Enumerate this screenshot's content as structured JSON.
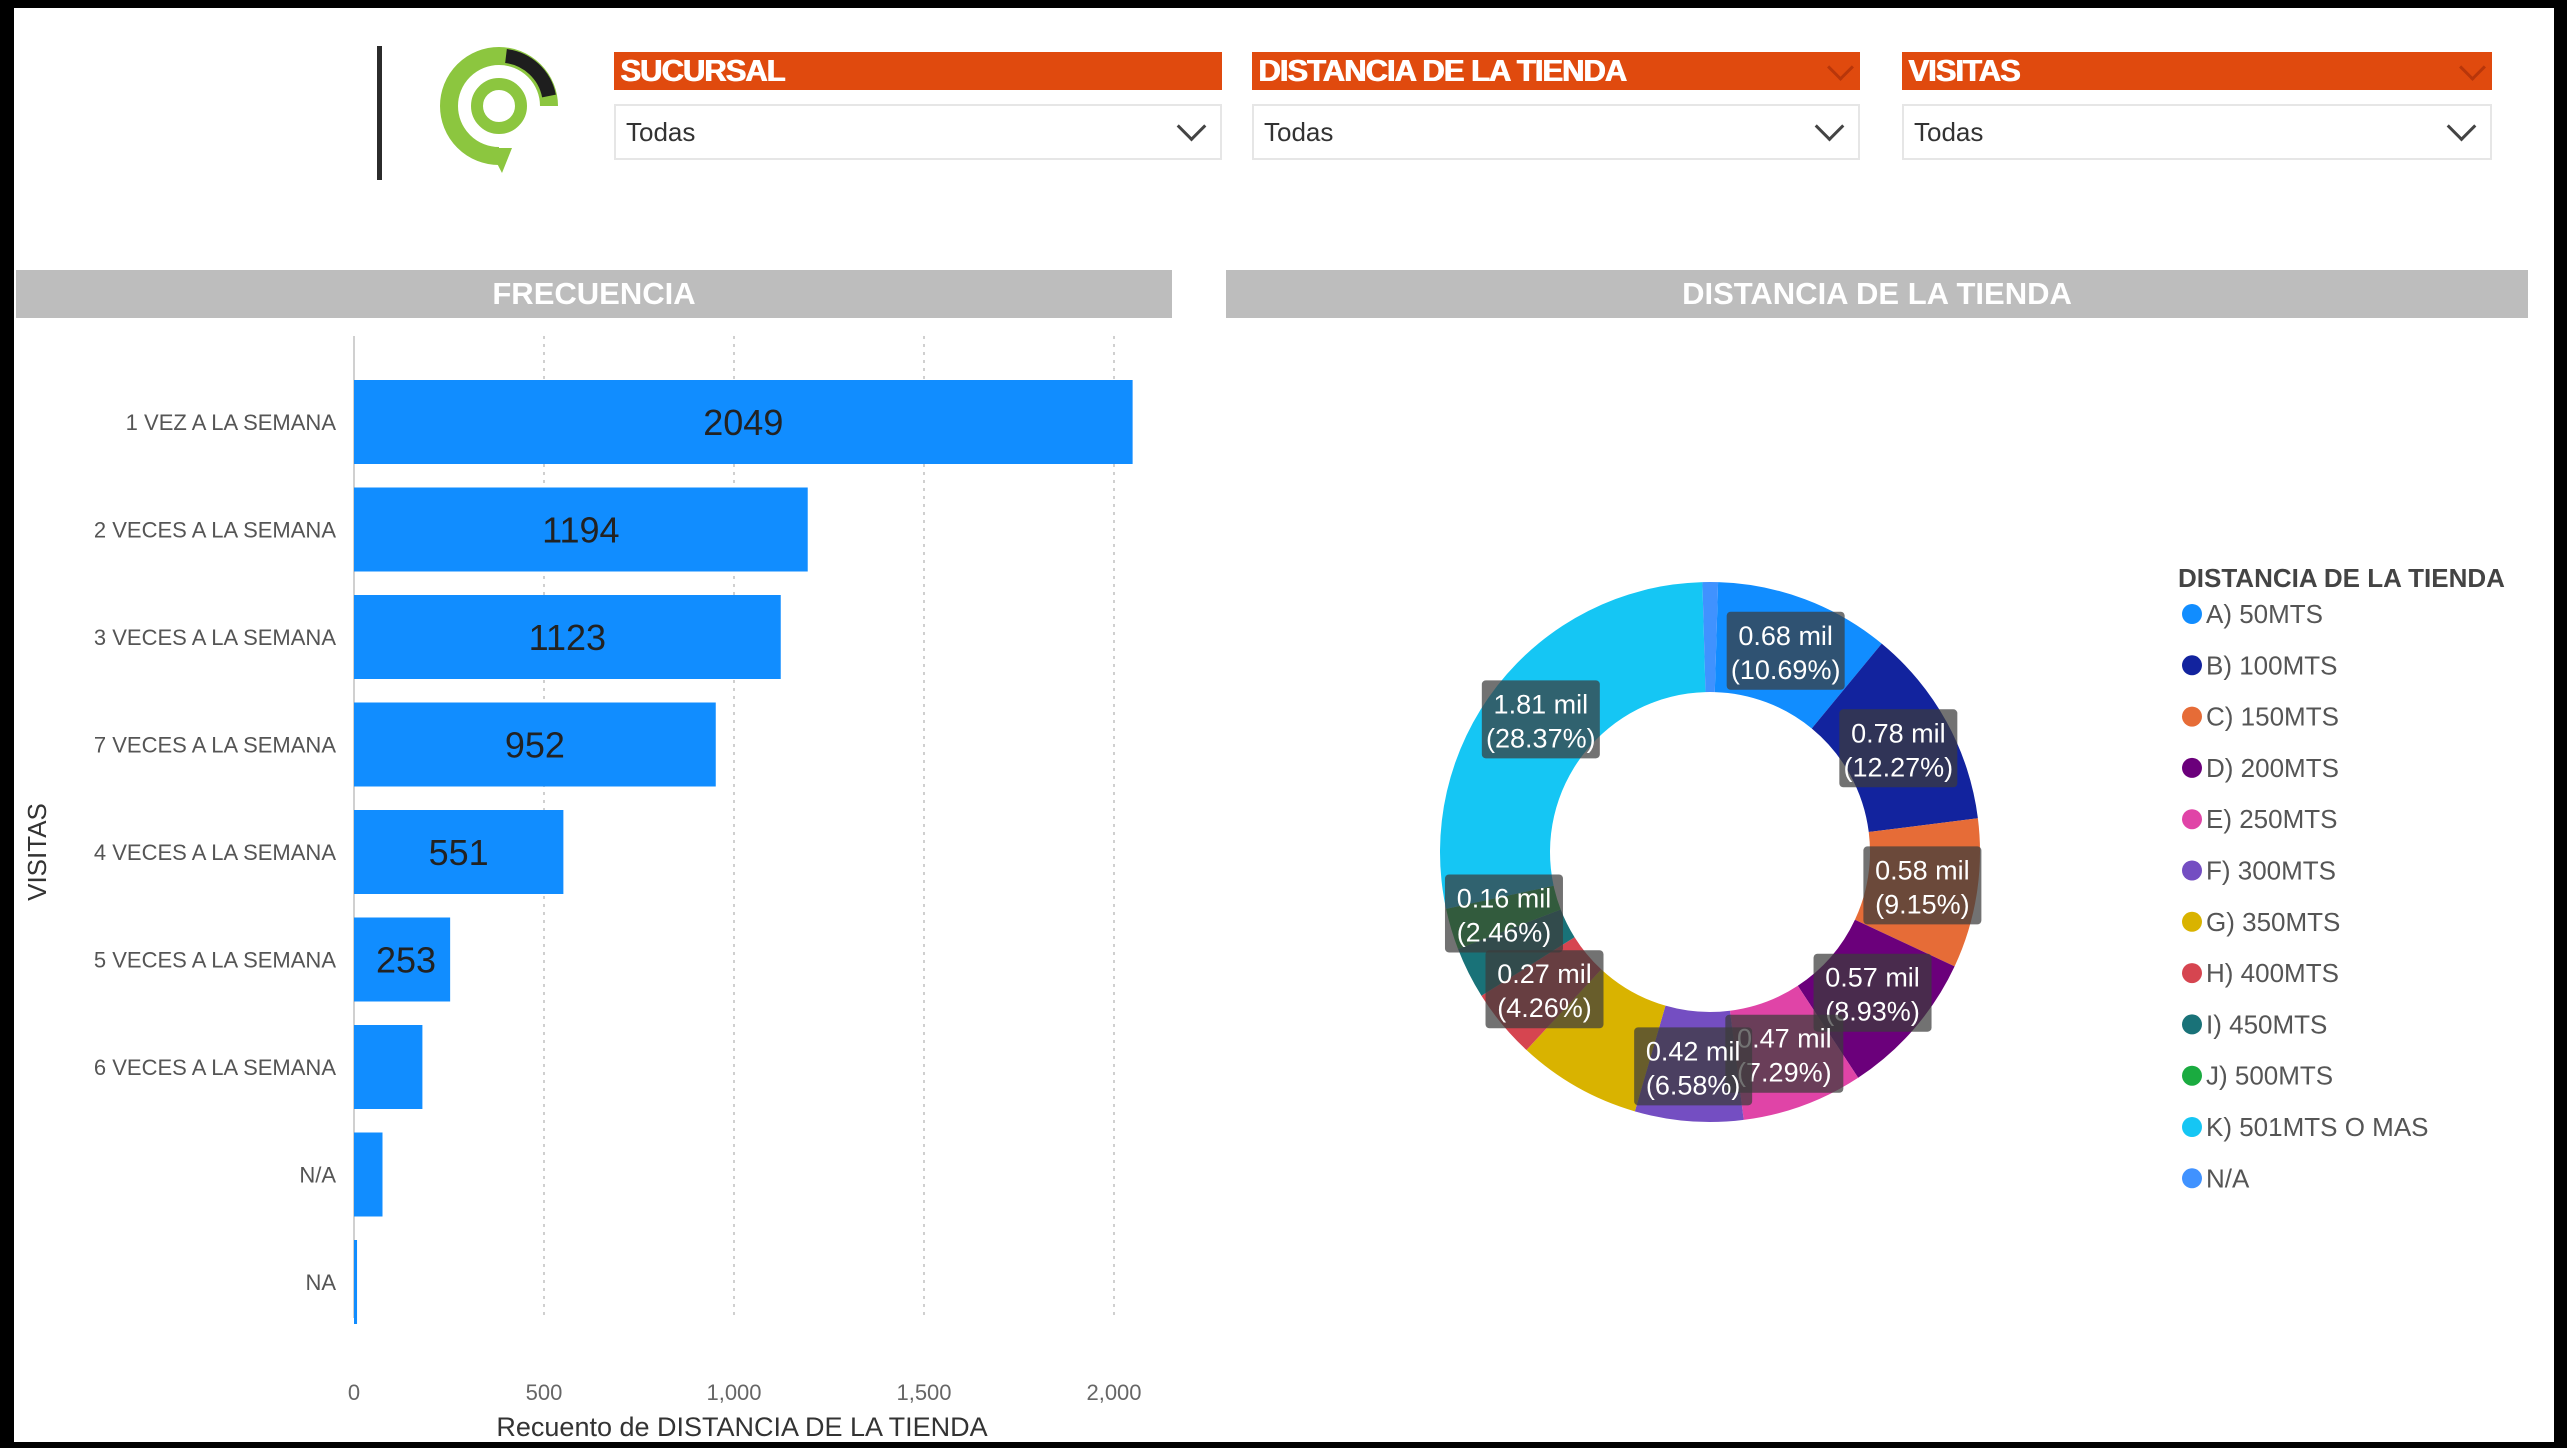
{
  "slicers": [
    {
      "title": "SUCURSAL",
      "value": "Todas"
    },
    {
      "title": "DISTANCIA DE LA TIENDA",
      "value": "Todas"
    },
    {
      "title": "VISITAS",
      "value": "Todas"
    }
  ],
  "panels": {
    "left_title": "FRECUENCIA",
    "right_title": "DISTANCIA DE LA TIENDA"
  },
  "chart_data": [
    {
      "type": "bar",
      "orientation": "horizontal",
      "categories": [
        "1 VEZ A LA SEMANA",
        "2 VECES A LA SEMANA",
        "3 VECES A LA SEMANA",
        "7 VECES A LA SEMANA",
        "4 VECES A LA SEMANA",
        "5 VECES A LA SEMANA",
        "6 VECES A LA SEMANA",
        "N/A",
        "NA"
      ],
      "values": [
        2049,
        1194,
        1123,
        952,
        551,
        253,
        180,
        75,
        8
      ],
      "data_labels": [
        "2049",
        "1194",
        "1123",
        "952",
        "551",
        "253",
        "",
        "",
        ""
      ],
      "xlabel": "Recuento de DISTANCIA DE LA TIENDA",
      "ylabel": "VISITAS",
      "xticks": [
        0,
        500,
        1000,
        1500,
        2000
      ],
      "xtick_labels": [
        "0",
        "500",
        "1,000",
        "1,500",
        "2,000"
      ],
      "xlim": [
        0,
        2100
      ],
      "grid": true,
      "color": "#118dff"
    },
    {
      "type": "pie",
      "donut": true,
      "legend_title": "DISTANCIA DE LA TIENDA",
      "legend_position": "right",
      "slices": [
        {
          "name": "A) 50MTS",
          "value": 0.68,
          "pct": 10.69,
          "color": "#118dff",
          "label": "0.68 mil",
          "pct_label": "(10.69%)"
        },
        {
          "name": "B) 100MTS",
          "value": 0.78,
          "pct": 12.27,
          "color": "#12239e",
          "label": "0.78 mil",
          "pct_label": "(12.27%)"
        },
        {
          "name": "C) 150MTS",
          "value": 0.58,
          "pct": 9.15,
          "color": "#e66c37",
          "label": "0.58 mil",
          "pct_label": "(9.15%)"
        },
        {
          "name": "D) 200MTS",
          "value": 0.57,
          "pct": 8.93,
          "color": "#6b007b",
          "label": "0.57 mil",
          "pct_label": "(8.93%)"
        },
        {
          "name": "E) 250MTS",
          "value": 0.47,
          "pct": 7.29,
          "color": "#e044a7",
          "label": "0.47 mil",
          "pct_label": "(7.29%)"
        },
        {
          "name": "F) 300MTS",
          "value": 0.42,
          "pct": 6.58,
          "color": "#744ec2",
          "label": "0.42 mil",
          "pct_label": "(6.58%)"
        },
        {
          "name": "G) 350MTS",
          "value": 0.48,
          "pct": 7.5,
          "color": "#d9b300",
          "label": "",
          "pct_label": ""
        },
        {
          "name": "H) 400MTS",
          "value": 0.27,
          "pct": 4.26,
          "color": "#d64550",
          "label": "0.27 mil",
          "pct_label": "(4.26%)"
        },
        {
          "name": "I) 450MTS",
          "value": 0.2,
          "pct": 3.1,
          "color": "#197278",
          "label": "",
          "pct_label": ""
        },
        {
          "name": "J) 500MTS",
          "value": 0.16,
          "pct": 2.46,
          "color": "#1aab40",
          "label": "0.16 mil",
          "pct_label": "(2.46%)"
        },
        {
          "name": "K) 501MTS O MAS",
          "value": 1.81,
          "pct": 28.37,
          "color": "#15c6f4",
          "label": "1.81 mil",
          "pct_label": "(28.37%)"
        },
        {
          "name": "N/A",
          "value": 0.06,
          "pct": 0.9,
          "color": "#4092ff",
          "label": "",
          "pct_label": ""
        }
      ]
    }
  ]
}
